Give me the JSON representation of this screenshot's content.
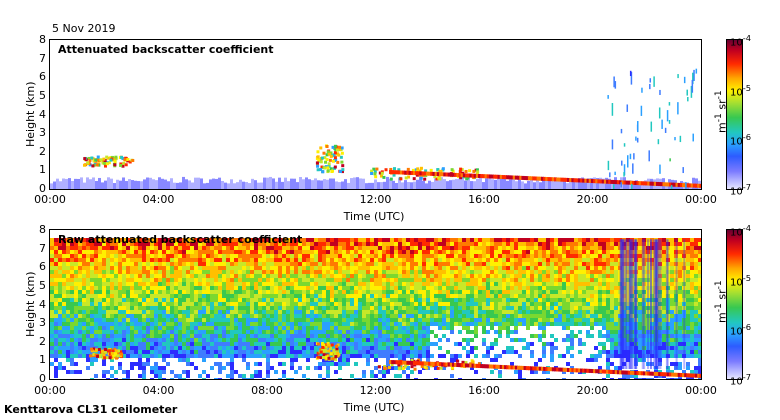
{
  "date": "5 Nov 2019",
  "site": "Kenttarova CL31 ceilometer",
  "chart_data": [
    {
      "type": "heatmap",
      "title": "Attenuated backscatter coefficient",
      "xlabel": "Time (UTC)",
      "ylabel": "Height (km)",
      "xticks": [
        "00:00",
        "04:00",
        "08:00",
        "12:00",
        "16:00",
        "20:00",
        "00:00"
      ],
      "yticks": [
        "0",
        "1",
        "2",
        "3",
        "4",
        "5",
        "6",
        "7",
        "8"
      ],
      "xlim_hours": [
        0,
        24
      ],
      "ylim_km": [
        0,
        8
      ],
      "colorbar": {
        "ticks": [
          "10-7",
          "10-6",
          "10-5",
          "10-4"
        ],
        "unit": "m-1 sr-1",
        "scale": "log"
      },
      "features": [
        {
          "name": "boundary layer",
          "t_start": 0,
          "t_end": 24,
          "h_top": 0.5
        },
        {
          "name": "low cloud",
          "t_start": 1.2,
          "t_end": 3.0,
          "h_base": 1.3,
          "h_top": 1.8
        },
        {
          "name": "low cloud",
          "t_start": 9.8,
          "t_end": 10.8,
          "h_base": 1.0,
          "h_top": 2.4
        },
        {
          "name": "low cloud",
          "t_start": 11.8,
          "t_end": 15.8,
          "h_base": 0.6,
          "h_top": 1.2
        },
        {
          "name": "descending layer",
          "t_start": 12.5,
          "t_end": 24,
          "h_top": 0.2
        },
        {
          "name": "precipitation streaks",
          "t_start": 20.5,
          "t_end": 23.8,
          "h_base": 0.2,
          "h_top": 6.5
        }
      ]
    },
    {
      "type": "heatmap",
      "title": "Raw attenuated backscatter coefficient",
      "xlabel": "Time (UTC)",
      "ylabel": "Height (km)",
      "xticks": [
        "00:00",
        "04:00",
        "08:00",
        "12:00",
        "16:00",
        "20:00",
        "00:00"
      ],
      "yticks": [
        "0",
        "1",
        "2",
        "3",
        "4",
        "5",
        "6",
        "7",
        "8"
      ],
      "xlim_hours": [
        0,
        24
      ],
      "ylim_km": [
        0,
        8
      ],
      "colorbar": {
        "ticks": [
          "10-7",
          "10-6",
          "10-5",
          "10-4"
        ],
        "unit": "m-1 sr-1",
        "scale": "log"
      }
    }
  ]
}
